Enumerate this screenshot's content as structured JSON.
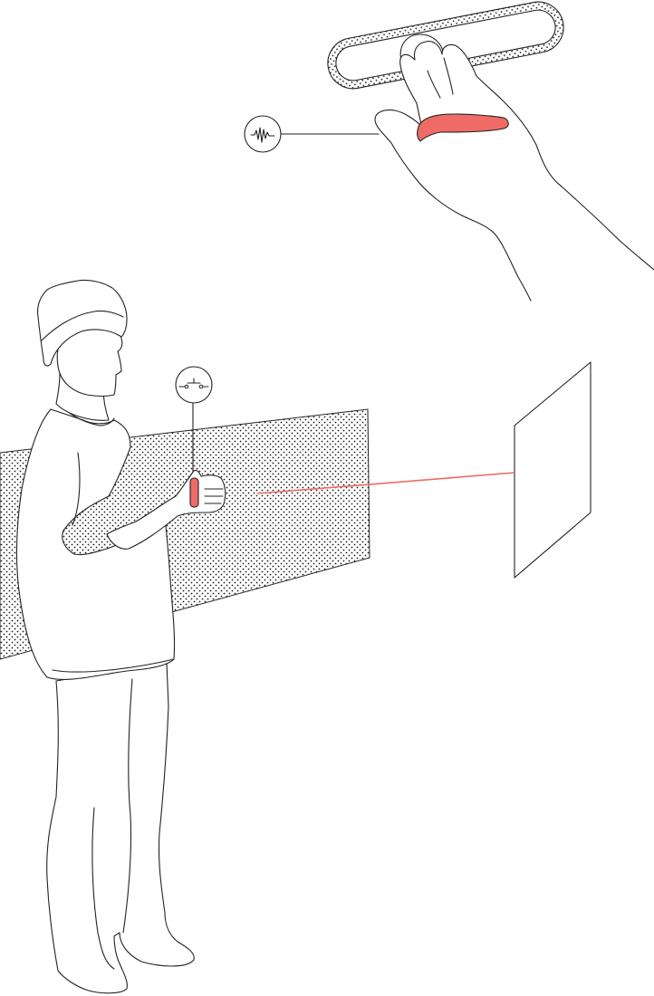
{
  "colors": {
    "background": "#ffffff",
    "ink": "#222222",
    "accent": "#ee6b66",
    "stipple": "#1a1a1a"
  },
  "icons": {
    "top_callout": "waveform-icon",
    "mid_callout": "switch-icon"
  }
}
